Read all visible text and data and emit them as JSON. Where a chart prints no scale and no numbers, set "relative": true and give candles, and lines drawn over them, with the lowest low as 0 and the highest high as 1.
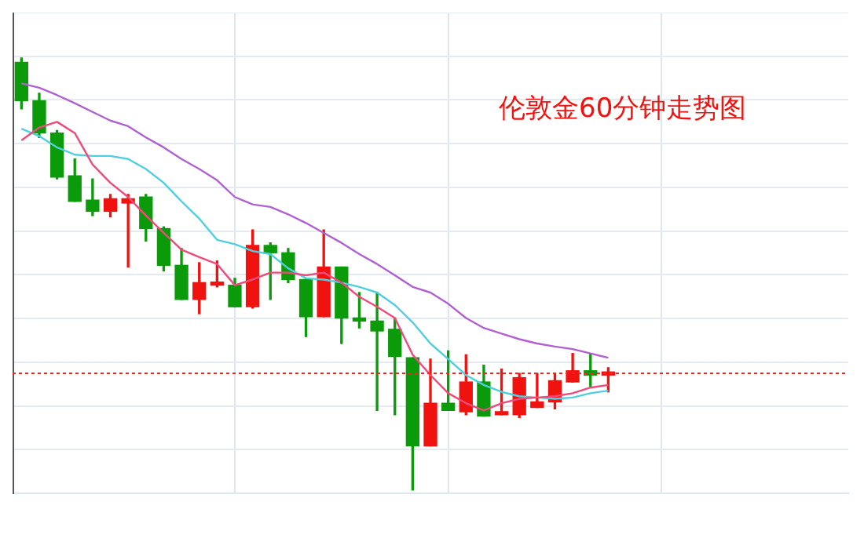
{
  "chart_data": {
    "type": "candlestick",
    "title": "伦敦金60分钟走势图",
    "relative": true,
    "grid": true,
    "legend": false,
    "categories": [
      null,
      null,
      null,
      null,
      null,
      null,
      null,
      null,
      null,
      null,
      null,
      null,
      null,
      null,
      null,
      null,
      null,
      null,
      null,
      null,
      null,
      null,
      null,
      null,
      null,
      null,
      null,
      null,
      null,
      null,
      null,
      null,
      null,
      null,
      null,
      null,
      null,
      null,
      null,
      null,
      null,
      null,
      null,
      null,
      null,
      null,
      null
    ],
    "ohlc": [
      [
        0.99,
        1.0,
        0.882,
        0.901
      ],
      [
        0.901,
        0.918,
        0.816,
        0.826
      ],
      [
        0.826,
        0.832,
        0.72,
        0.724
      ],
      [
        0.727,
        0.766,
        0.668,
        0.668
      ],
      [
        0.671,
        0.72,
        0.635,
        0.645
      ],
      [
        0.645,
        0.684,
        0.632,
        0.674
      ],
      [
        0.664,
        0.684,
        0.516,
        0.674
      ],
      [
        0.678,
        0.684,
        0.576,
        0.605
      ],
      [
        0.605,
        0.609,
        0.507,
        0.52
      ],
      [
        0.52,
        0.559,
        0.441,
        0.441
      ],
      [
        0.441,
        0.526,
        0.408,
        0.48
      ],
      [
        0.474,
        0.53,
        0.47,
        0.48
      ],
      [
        0.474,
        0.49,
        0.424,
        0.424
      ],
      [
        0.424,
        0.602,
        0.421,
        0.566
      ],
      [
        0.566,
        0.572,
        0.441,
        0.549
      ],
      [
        0.549,
        0.559,
        0.48,
        0.487
      ],
      [
        0.487,
        0.49,
        0.355,
        0.401
      ],
      [
        0.401,
        0.602,
        0.401,
        0.516
      ],
      [
        0.516,
        0.516,
        0.339,
        0.398
      ],
      [
        0.398,
        0.457,
        0.375,
        0.391
      ],
      [
        0.391,
        0.457,
        0.184,
        0.368
      ],
      [
        0.372,
        0.398,
        0.174,
        0.309
      ],
      [
        0.306,
        0.306,
        0.0,
        0.102
      ],
      [
        0.102,
        0.303,
        0.102,
        0.201
      ],
      [
        0.201,
        0.322,
        0.184,
        0.184
      ],
      [
        0.181,
        0.313,
        0.174,
        0.25
      ],
      [
        0.25,
        0.289,
        0.171,
        0.171
      ],
      [
        0.174,
        0.28,
        0.174,
        0.178
      ],
      [
        0.174,
        0.27,
        0.168,
        0.26
      ],
      [
        0.191,
        0.27,
        0.191,
        0.204
      ],
      [
        0.204,
        0.27,
        0.188,
        0.253
      ],
      [
        0.25,
        0.316,
        0.25,
        0.276
      ],
      [
        0.276,
        0.316,
        0.24,
        0.266
      ],
      [
        0.266,
        0.283,
        0.227,
        0.27
      ],
      null,
      null,
      null,
      null,
      null,
      null,
      null,
      null,
      null,
      null,
      null,
      null,
      null
    ],
    "colors": [
      "#0a9a0a",
      "#0a9a0a",
      "#0a9a0a",
      "#0a9a0a",
      "#0a9a0a",
      "#f0120f",
      "#f0120f",
      "#0a9a0a",
      "#0a9a0a",
      "#0a9a0a",
      "#f0120f",
      "#f0120f",
      "#0a9a0a",
      "#f0120f",
      "#0a9a0a",
      "#0a9a0a",
      "#0a9a0a",
      "#f0120f",
      "#0a9a0a",
      "#0a9a0a",
      "#0a9a0a",
      "#0a9a0a",
      "#0a9a0a",
      "#f0120f",
      "#0a9a0a",
      "#f0120f",
      "#0a9a0a",
      "#f0120f",
      "#f0120f",
      "#f0120f",
      "#f0120f",
      "#f0120f",
      "#0a9a0a",
      "#f0120f",
      null,
      null,
      null,
      null,
      null,
      null,
      null,
      null,
      null,
      null,
      null,
      null,
      null
    ],
    "series": [
      {
        "type": "line",
        "color": "#ee4b7c",
        "values": [
          0.809,
          0.839,
          0.852,
          0.826,
          0.753,
          0.711,
          0.678,
          0.635,
          0.595,
          0.556,
          0.539,
          0.523,
          0.474,
          0.487,
          0.503,
          0.503,
          0.497,
          0.503,
          0.48,
          0.447,
          0.424,
          0.398,
          0.313,
          0.266,
          0.224,
          0.201,
          0.184,
          0.201,
          0.211,
          0.214,
          0.217,
          0.224,
          0.237,
          0.243,
          null,
          null,
          null,
          null,
          null,
          null,
          null,
          null,
          null,
          null,
          null,
          null,
          null
        ]
      },
      {
        "type": "line",
        "color": "#4fcfdf",
        "values": [
          0.836,
          0.819,
          0.793,
          0.776,
          0.773,
          0.773,
          0.766,
          0.743,
          0.711,
          0.668,
          0.628,
          0.579,
          0.569,
          0.553,
          0.546,
          0.513,
          0.49,
          0.487,
          0.48,
          0.47,
          0.457,
          0.428,
          0.388,
          0.339,
          0.303,
          0.266,
          0.243,
          0.227,
          0.217,
          0.214,
          0.211,
          0.214,
          0.224,
          0.23,
          null,
          null,
          null,
          null,
          null,
          null,
          null,
          null,
          null,
          null,
          null,
          null,
          null
        ]
      },
      {
        "type": "line",
        "color": "#b060d0",
        "values": [
          0.941,
          0.931,
          0.914,
          0.895,
          0.875,
          0.855,
          0.842,
          0.816,
          0.793,
          0.766,
          0.743,
          0.717,
          0.678,
          0.661,
          0.655,
          0.638,
          0.618,
          0.595,
          0.572,
          0.546,
          0.523,
          0.497,
          0.47,
          0.457,
          0.431,
          0.398,
          0.375,
          0.362,
          0.349,
          0.339,
          0.332,
          0.326,
          0.316,
          0.306,
          null,
          null,
          null,
          null,
          null,
          null,
          null,
          null,
          null,
          null,
          null,
          null,
          null
        ]
      }
    ],
    "ref_lines": [
      {
        "axis": "y",
        "value": 0.27,
        "color": "#ff2020",
        "line_style": "dotted"
      }
    ]
  }
}
